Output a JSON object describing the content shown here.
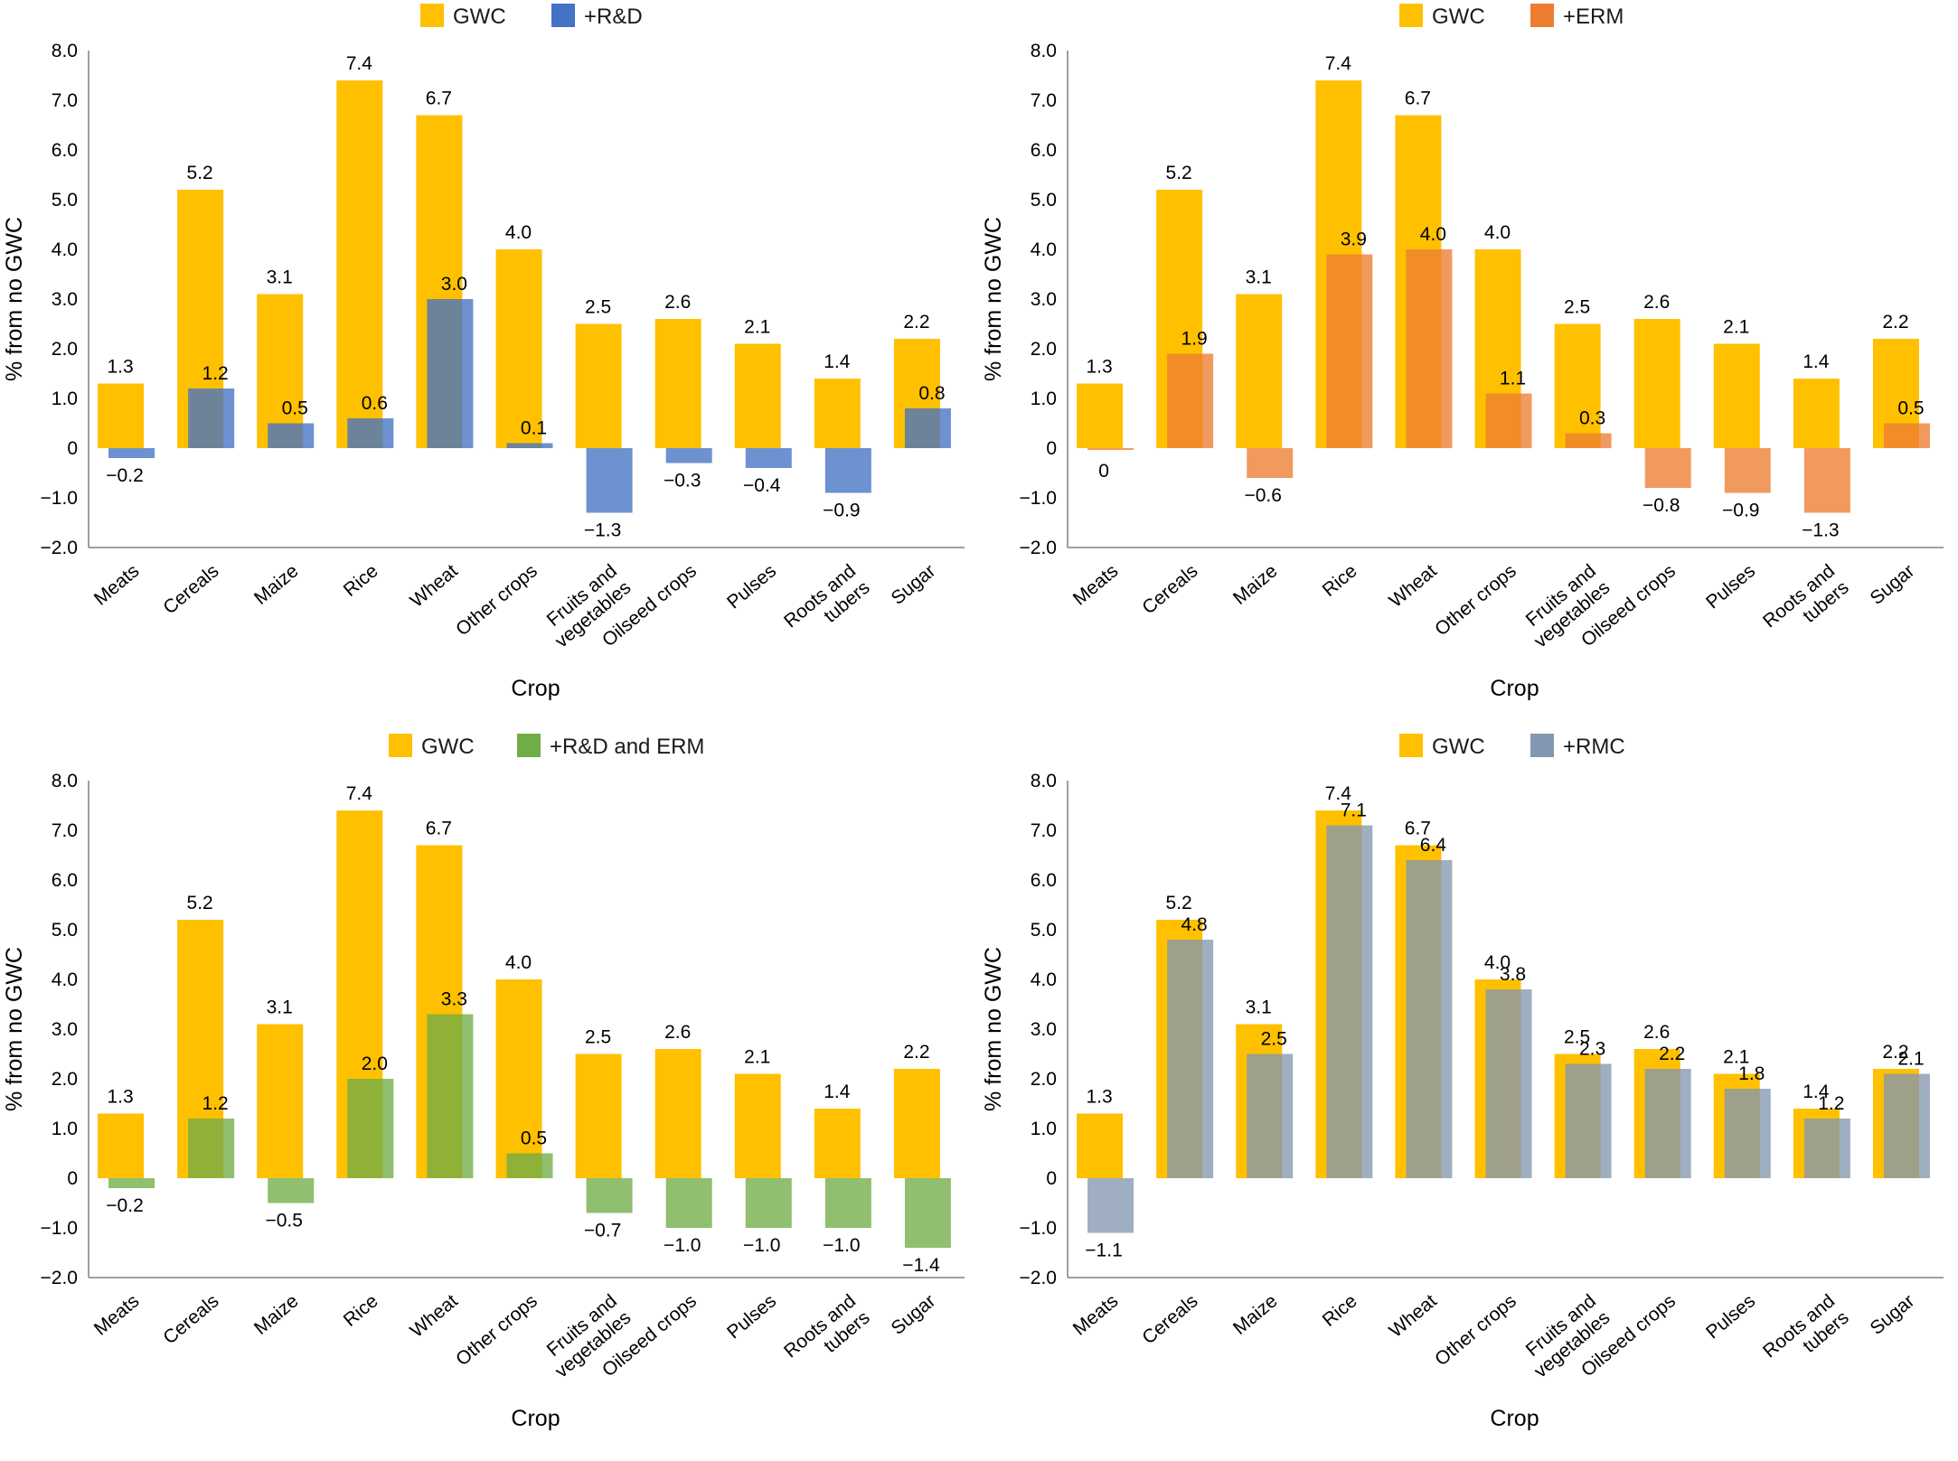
{
  "chart_data": [
    {
      "type": "bar",
      "panel": "top-left",
      "categories": [
        "Meats",
        "Cereals",
        "Maize",
        "Rice",
        "Wheat",
        "Other crops",
        "Fruits and vegetables",
        "Oilseed crops",
        "Pulses",
        "Roots and tubers",
        "Sugar"
      ],
      "category_lines": [
        [
          "Meats"
        ],
        [
          "Cereals"
        ],
        [
          "Maize"
        ],
        [
          "Rice"
        ],
        [
          "Wheat"
        ],
        [
          "Other crops"
        ],
        [
          "Fruits and",
          "vegetables"
        ],
        [
          "Oilseed crops"
        ],
        [
          "Pulses"
        ],
        [
          "Roots and",
          "tubers"
        ],
        [
          "Sugar"
        ]
      ],
      "series": [
        {
          "name": "GWC",
          "color": "#FFC000",
          "values": [
            1.3,
            5.2,
            3.1,
            7.4,
            6.7,
            4.0,
            2.5,
            2.6,
            2.1,
            1.4,
            2.2
          ],
          "labels": [
            "1.3",
            "5.2",
            "3.1",
            "7.4",
            "6.7",
            "4.0",
            "2.5",
            "2.6",
            "2.1",
            "1.4",
            "2.2"
          ]
        },
        {
          "name": "+R&D",
          "color": "#4472C4",
          "values": [
            -0.2,
            1.2,
            0.5,
            0.6,
            3.0,
            0.1,
            -1.3,
            -0.3,
            -0.4,
            -0.9,
            0.8
          ],
          "labels": [
            "−0.2",
            "1.2",
            "0.5",
            "0.6",
            "3.0",
            "0.1",
            "−1.3",
            "−0.3",
            "−0.4",
            "−0.9",
            "0.8"
          ]
        }
      ],
      "yticks": [
        "8.0",
        "7.0",
        "6.0",
        "5.0",
        "4.0",
        "3.0",
        "2.0",
        "1.0",
        "0",
        "−1.0",
        "−2.0"
      ],
      "ylim": [
        -2,
        8
      ],
      "xlabel": "Crop",
      "ylabel": "% from no GWC"
    },
    {
      "type": "bar",
      "panel": "top-right",
      "categories": [
        "Meats",
        "Cereals",
        "Maize",
        "Rice",
        "Wheat",
        "Other crops",
        "Fruits and vegetables",
        "Oilseed crops",
        "Pulses",
        "Roots and tubers",
        "Sugar"
      ],
      "category_lines": [
        [
          "Meats"
        ],
        [
          "Cereals"
        ],
        [
          "Maize"
        ],
        [
          "Rice"
        ],
        [
          "Wheat"
        ],
        [
          "Other crops"
        ],
        [
          "Fruits and",
          "vegetables"
        ],
        [
          "Oilseed crops"
        ],
        [
          "Pulses"
        ],
        [
          "Roots and",
          "tubers"
        ],
        [
          "Sugar"
        ]
      ],
      "series": [
        {
          "name": "GWC",
          "color": "#FFC000",
          "values": [
            1.3,
            5.2,
            3.1,
            7.4,
            6.7,
            4.0,
            2.5,
            2.6,
            2.1,
            1.4,
            2.2
          ],
          "labels": [
            "1.3",
            "5.2",
            "3.1",
            "7.4",
            "6.7",
            "4.0",
            "2.5",
            "2.6",
            "2.1",
            "1.4",
            "2.2"
          ]
        },
        {
          "name": "+ERM",
          "color": "#ED7D31",
          "values": [
            0,
            1.9,
            -0.6,
            3.9,
            4.0,
            1.1,
            0.3,
            -0.8,
            -0.9,
            -1.3,
            0.5
          ],
          "labels": [
            "0",
            "1.9",
            "−0.6",
            "3.9",
            "4.0",
            "1.1",
            "0.3",
            "−0.8",
            "−0.9",
            "−1.3",
            "0.5"
          ]
        }
      ],
      "yticks": [
        "8.0",
        "7.0",
        "6.0",
        "5.0",
        "4.0",
        "3.0",
        "2.0",
        "1.0",
        "0",
        "−1.0",
        "−2.0"
      ],
      "ylim": [
        -2,
        8
      ],
      "xlabel": "Crop",
      "ylabel": "% from no GWC"
    },
    {
      "type": "bar",
      "panel": "bottom-left",
      "categories": [
        "Meats",
        "Cereals",
        "Maize",
        "Rice",
        "Wheat",
        "Other crops",
        "Fruits and vegetables",
        "Oilseed crops",
        "Pulses",
        "Roots and tubers",
        "Sugar"
      ],
      "category_lines": [
        [
          "Meats"
        ],
        [
          "Cereals"
        ],
        [
          "Maize"
        ],
        [
          "Rice"
        ],
        [
          "Wheat"
        ],
        [
          "Other crops"
        ],
        [
          "Fruits and",
          "vegetables"
        ],
        [
          "Oilseed crops"
        ],
        [
          "Pulses"
        ],
        [
          "Roots and",
          "tubers"
        ],
        [
          "Sugar"
        ]
      ],
      "series": [
        {
          "name": "GWC",
          "color": "#FFC000",
          "values": [
            1.3,
            5.2,
            3.1,
            7.4,
            6.7,
            4.0,
            2.5,
            2.6,
            2.1,
            1.4,
            2.2
          ],
          "labels": [
            "1.3",
            "5.2",
            "3.1",
            "7.4",
            "6.7",
            "4.0",
            "2.5",
            "2.6",
            "2.1",
            "1.4",
            "2.2"
          ]
        },
        {
          "name": "+R&D and ERM",
          "color": "#70AD47",
          "values": [
            -0.2,
            1.2,
            -0.5,
            2.0,
            3.3,
            0.5,
            -0.7,
            -1.0,
            -1.0,
            -1.0,
            -1.4
          ],
          "labels": [
            "−0.2",
            "1.2",
            "−0.5",
            "2.0",
            "3.3",
            "0.5",
            "−0.7",
            "−1.0",
            "−1.0",
            "−1.0",
            "−1.4"
          ]
        }
      ],
      "yticks": [
        "8.0",
        "7.0",
        "6.0",
        "5.0",
        "4.0",
        "3.0",
        "2.0",
        "1.0",
        "0",
        "−1.0",
        "−2.0"
      ],
      "ylim": [
        -2,
        8
      ],
      "xlabel": "Crop",
      "ylabel": "% from no GWC"
    },
    {
      "type": "bar",
      "panel": "bottom-right",
      "categories": [
        "Meats",
        "Cereals",
        "Maize",
        "Rice",
        "Wheat",
        "Other crops",
        "Fruits and vegetables",
        "Oilseed crops",
        "Pulses",
        "Roots and tubers",
        "Sugar"
      ],
      "category_lines": [
        [
          "Meats"
        ],
        [
          "Cereals"
        ],
        [
          "Maize"
        ],
        [
          "Rice"
        ],
        [
          "Wheat"
        ],
        [
          "Other crops"
        ],
        [
          "Fruits and",
          "vegetables"
        ],
        [
          "Oilseed crops"
        ],
        [
          "Pulses"
        ],
        [
          "Roots and",
          "tubers"
        ],
        [
          "Sugar"
        ]
      ],
      "series": [
        {
          "name": "GWC",
          "color": "#FFC000",
          "values": [
            1.3,
            5.2,
            3.1,
            7.4,
            6.7,
            4.0,
            2.5,
            2.6,
            2.1,
            1.4,
            2.2
          ],
          "labels": [
            "1.3",
            "5.2",
            "3.1",
            "7.4",
            "6.7",
            "4.0",
            "2.5",
            "2.6",
            "2.1",
            "1.4",
            "2.2"
          ]
        },
        {
          "name": "+RMC",
          "color": "#8497B0",
          "values": [
            -1.1,
            4.8,
            2.5,
            7.1,
            6.4,
            3.8,
            2.3,
            2.2,
            1.8,
            1.2,
            2.1
          ],
          "labels": [
            "−1.1",
            "4.8",
            "2.5",
            "7.1",
            "6.4",
            "3.8",
            "2.3",
            "2.2",
            "1.8",
            "1.2",
            "2.1"
          ]
        }
      ],
      "yticks": [
        "8.0",
        "7.0",
        "6.0",
        "5.0",
        "4.0",
        "3.0",
        "2.0",
        "1.0",
        "0",
        "−1.0",
        "−2.0"
      ],
      "ylim": [
        -2,
        8
      ],
      "xlabel": "Crop",
      "ylabel": "% from no GWC"
    }
  ]
}
